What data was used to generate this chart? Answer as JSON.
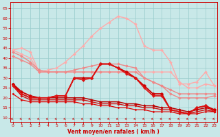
{
  "background_color": "#c8e8e8",
  "grid_color": "#99cccc",
  "xlabel": "Vent moyen/en rafales ( km/h )",
  "xlabel_color": "#cc0000",
  "xticks": [
    0,
    1,
    2,
    3,
    4,
    5,
    6,
    7,
    8,
    9,
    10,
    11,
    12,
    13,
    14,
    15,
    16,
    17,
    18,
    19,
    20,
    21,
    22,
    23
  ],
  "yticks": [
    10,
    15,
    20,
    25,
    30,
    35,
    40,
    45,
    50,
    55,
    60,
    65
  ],
  "ylim": [
    8,
    68
  ],
  "xlim": [
    -0.3,
    23.3
  ],
  "lines": [
    {
      "x": [
        0,
        1,
        2,
        3,
        4,
        5,
        6,
        7,
        8,
        9,
        10,
        11,
        12,
        13,
        14,
        15,
        16,
        17,
        18,
        19,
        20,
        21,
        22,
        23
      ],
      "y": [
        44,
        45,
        43,
        33,
        34,
        35,
        38,
        42,
        46,
        51,
        55,
        58,
        61,
        60,
        57,
        46,
        44,
        44,
        38,
        27,
        27,
        28,
        33,
        26
      ],
      "color": "#ffaaaa",
      "lw": 1.0,
      "marker": "D",
      "ms": 2.0,
      "zorder": 2
    },
    {
      "x": [
        0,
        1,
        2,
        3,
        4,
        5,
        6,
        7,
        8,
        9,
        10,
        11,
        12,
        13,
        14,
        15,
        16,
        17,
        18,
        19,
        20,
        21,
        22,
        23
      ],
      "y": [
        44,
        42,
        40,
        33,
        33,
        33,
        33,
        33,
        33,
        33,
        33,
        33,
        33,
        33,
        33,
        33,
        33,
        33,
        33,
        28,
        25,
        25,
        27,
        26
      ],
      "color": "#ffaaaa",
      "lw": 1.0,
      "marker": "D",
      "ms": 2.0,
      "zorder": 2
    },
    {
      "x": [
        0,
        1,
        2,
        3,
        4,
        5,
        6,
        7,
        8,
        9,
        10,
        11,
        12,
        13,
        14,
        15,
        16,
        17,
        18,
        19,
        20,
        21,
        22,
        23
      ],
      "y": [
        43,
        41,
        38,
        34,
        33,
        33,
        33,
        33,
        33,
        33,
        33,
        33,
        33,
        33,
        33,
        30,
        28,
        26,
        24,
        22,
        22,
        22,
        22,
        22
      ],
      "color": "#ee8888",
      "lw": 1.0,
      "marker": "D",
      "ms": 2.0,
      "zorder": 2
    },
    {
      "x": [
        0,
        1,
        2,
        3,
        4,
        5,
        6,
        7,
        8,
        9,
        10,
        11,
        12,
        13,
        14,
        15,
        16,
        17,
        18,
        19,
        20,
        21,
        22,
        23
      ],
      "y": [
        41,
        39,
        37,
        33,
        33,
        33,
        33,
        34,
        35,
        36,
        37,
        37,
        37,
        36,
        35,
        30,
        28,
        26,
        22,
        20,
        20,
        20,
        20,
        21
      ],
      "color": "#ee8888",
      "lw": 1.0,
      "marker": "D",
      "ms": 2.0,
      "zorder": 2
    },
    {
      "x": [
        0,
        1,
        2,
        3,
        4,
        5,
        6,
        7,
        8,
        9,
        10,
        11,
        12,
        13,
        14,
        15,
        16,
        17,
        18,
        19,
        20,
        21,
        22,
        23
      ],
      "y": [
        27,
        23,
        21,
        20,
        20,
        21,
        21,
        30,
        30,
        30,
        37,
        37,
        35,
        33,
        30,
        26,
        22,
        22,
        14,
        13,
        12,
        15,
        16,
        14
      ],
      "color": "#cc0000",
      "lw": 1.3,
      "marker": "D",
      "ms": 2.5,
      "zorder": 4
    },
    {
      "x": [
        0,
        1,
        2,
        3,
        4,
        5,
        6,
        7,
        8,
        9,
        10,
        11,
        12,
        13,
        14,
        15,
        16,
        17,
        18,
        19,
        20,
        21,
        22,
        23
      ],
      "y": [
        26,
        22,
        20,
        20,
        20,
        21,
        21,
        30,
        29,
        30,
        37,
        37,
        35,
        32,
        30,
        25,
        21,
        21,
        14,
        13,
        12,
        15,
        16,
        13
      ],
      "color": "#dd1111",
      "lw": 1.2,
      "marker": "D",
      "ms": 2.0,
      "zorder": 4
    },
    {
      "x": [
        0,
        1,
        2,
        3,
        4,
        5,
        6,
        7,
        8,
        9,
        10,
        11,
        12,
        13,
        14,
        15,
        16,
        17,
        18,
        19,
        20,
        21,
        22,
        23
      ],
      "y": [
        27,
        22,
        20,
        20,
        20,
        20,
        20,
        20,
        20,
        19,
        18,
        18,
        18,
        17,
        17,
        16,
        16,
        15,
        15,
        14,
        13,
        14,
        15,
        14
      ],
      "color": "#bb0000",
      "lw": 1.1,
      "marker": "D",
      "ms": 2.0,
      "zorder": 3
    },
    {
      "x": [
        0,
        1,
        2,
        3,
        4,
        5,
        6,
        7,
        8,
        9,
        10,
        11,
        12,
        13,
        14,
        15,
        16,
        17,
        18,
        19,
        20,
        21,
        22,
        23
      ],
      "y": [
        26,
        21,
        19,
        19,
        19,
        19,
        19,
        19,
        19,
        18,
        17,
        17,
        17,
        16,
        16,
        15,
        15,
        14,
        14,
        13,
        12,
        13,
        14,
        13
      ],
      "color": "#cc1111",
      "lw": 1.0,
      "marker": "D",
      "ms": 1.8,
      "zorder": 3
    },
    {
      "x": [
        0,
        1,
        2,
        3,
        4,
        5,
        6,
        7,
        8,
        9,
        10,
        11,
        12,
        13,
        14,
        15,
        16,
        17,
        18,
        19,
        20,
        21,
        22,
        23
      ],
      "y": [
        22,
        19,
        18,
        18,
        18,
        18,
        18,
        18,
        17,
        17,
        16,
        16,
        15,
        15,
        14,
        14,
        13,
        13,
        13,
        12,
        12,
        12,
        13,
        13
      ],
      "color": "#dd0000",
      "lw": 0.9,
      "marker": "D",
      "ms": 1.5,
      "zorder": 3
    }
  ],
  "arrow_color": "#cc2222",
  "tick_color": "#cc0000",
  "spine_color": "#cc0000"
}
